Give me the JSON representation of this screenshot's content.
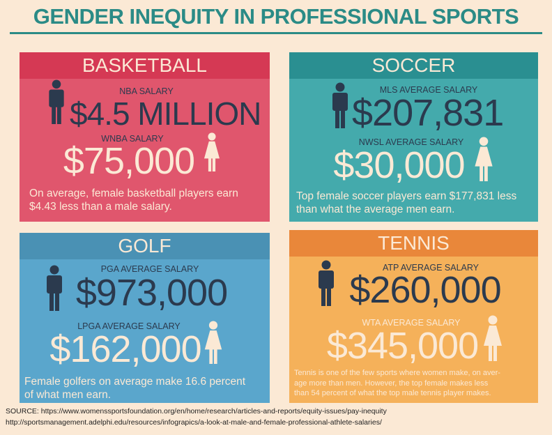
{
  "title": "GENDER INEQUITY IN PROFESSIONAL SPORTS",
  "panels": [
    {
      "heading": "BASKETBALL",
      "male_label": "NBA SALARY",
      "male_salary": "$4.5 MILLION",
      "female_label": "WNBA SALARY",
      "female_salary": "$75,000",
      "note": [
        "On average, female basketball players earn",
        "$4.43 less than a male salary."
      ]
    },
    {
      "heading": "SOCCER",
      "male_label": "MLS AVERAGE SALARY",
      "male_salary": "$207,831",
      "female_label": "NWSL AVERAGE SALARY",
      "female_salary": "$30,000",
      "note": [
        "Top female soccer players earn $177,831 less",
        "than what the average men earn."
      ]
    },
    {
      "heading": "GOLF",
      "male_label": "PGA AVERAGE SALARY",
      "male_salary": "$973,000",
      "female_label": "LPGA AVERAGE SALARY",
      "female_salary": "$162,000",
      "note": [
        "Female golfers on average make 16.6 percent",
        "of what men earn."
      ]
    },
    {
      "heading": "TENNIS",
      "male_label": "ATP AVERAGE SALARY",
      "male_salary": "$260,000",
      "female_label": "WTA AVERAGE SALARY",
      "female_salary": "$345,000",
      "note": [
        "Tennis is one of the few sports where women make, on aver-",
        "age more than men. However, the top female makes less",
        "than 54 percent of what the top male tennis player makes."
      ]
    }
  ],
  "source": [
    "SOURCE: https://www.womenssportsfoundation.org/en/home/research/articles-and-reports/equity-issues/pay-inequity",
    "http://sportsmanagement.adelphi.edu/resources/infograpics/a-look-at-male-and-female-professional-athlete-salaries/"
  ]
}
